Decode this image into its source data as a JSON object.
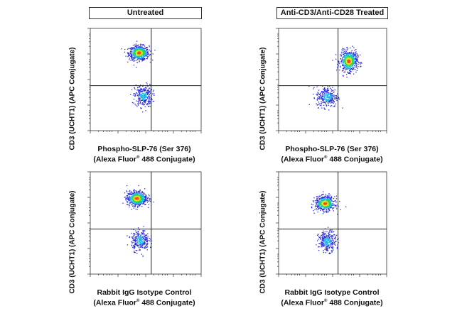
{
  "columns": [
    {
      "title": "Untreated"
    },
    {
      "title": "Anti-CD3/Anti-CD28 Treated"
    }
  ],
  "chart_data": [
    {
      "type": "scatter",
      "subtype": "flow-cytometry-density-dot-plot",
      "column": "Untreated",
      "xlabel_line1": "Phospho-SLP-76 (Ser 376)",
      "xlabel_line2_pre": "(Alexa Fluor",
      "xlabel_sup": "®",
      "xlabel_line2_post": " 488 Conjugate)",
      "ylabel": "CD3 (UCHT1) (APC Conjugate)",
      "xlim": [
        0,
        1
      ],
      "ylim": [
        0,
        1
      ],
      "gate": {
        "x": 0.55,
        "y": 0.44
      },
      "populations": [
        {
          "name": "CD3 high",
          "cx": 0.44,
          "cy": 0.76,
          "sx": 0.045,
          "sy": 0.035,
          "count": 650,
          "hot": true
        },
        {
          "name": "CD3 low",
          "cx": 0.48,
          "cy": 0.34,
          "sx": 0.04,
          "sy": 0.055,
          "count": 300,
          "hot": false
        }
      ]
    },
    {
      "type": "scatter",
      "subtype": "flow-cytometry-density-dot-plot",
      "column": "Anti-CD3/Anti-CD28 Treated",
      "xlabel_line1": "Phospho-SLP-76 (Ser 376)",
      "xlabel_line2_pre": "(Alexa Fluor",
      "xlabel_sup": "®",
      "xlabel_line2_post": " 488 Conjugate)",
      "ylabel": "CD3 (UCHT1) (APC Conjugate)",
      "xlim": [
        0,
        1
      ],
      "ylim": [
        0,
        1
      ],
      "gate": {
        "x": 0.55,
        "y": 0.44
      },
      "populations": [
        {
          "name": "CD3 high",
          "cx": 0.65,
          "cy": 0.68,
          "sx": 0.04,
          "sy": 0.05,
          "count": 600,
          "hot": true
        },
        {
          "name": "CD3 low",
          "cx": 0.45,
          "cy": 0.33,
          "sx": 0.05,
          "sy": 0.05,
          "count": 300,
          "hot": false
        }
      ]
    },
    {
      "type": "scatter",
      "subtype": "flow-cytometry-density-dot-plot",
      "column": "Untreated",
      "xlabel_line1": "Rabbit IgG Isotype Control",
      "xlabel_line2_pre": "(Alexa Fluor",
      "xlabel_sup": "®",
      "xlabel_line2_post": " 488 Conjugate)",
      "ylabel": "CD3 (UCHT1) (APC Conjugate)",
      "xlim": [
        0,
        1
      ],
      "ylim": [
        0,
        1
      ],
      "gate": {
        "x": 0.55,
        "y": 0.44
      },
      "populations": [
        {
          "name": "CD3 high",
          "cx": 0.42,
          "cy": 0.74,
          "sx": 0.045,
          "sy": 0.035,
          "count": 650,
          "hot": true
        },
        {
          "name": "CD3 low",
          "cx": 0.45,
          "cy": 0.33,
          "sx": 0.04,
          "sy": 0.05,
          "count": 300,
          "hot": false
        }
      ]
    },
    {
      "type": "scatter",
      "subtype": "flow-cytometry-density-dot-plot",
      "column": "Anti-CD3/Anti-CD28 Treated",
      "xlabel_line1": "Rabbit IgG Isotype Control",
      "xlabel_line2_pre": "(Alexa Fluor",
      "xlabel_sup": "®",
      "xlabel_line2_post": " 488 Conjugate)",
      "ylabel": "CD3 (UCHT1) (APC Conjugate)",
      "xlim": [
        0,
        1
      ],
      "ylim": [
        0,
        1
      ],
      "gate": {
        "x": 0.55,
        "y": 0.44
      },
      "populations": [
        {
          "name": "CD3 high",
          "cx": 0.43,
          "cy": 0.69,
          "sx": 0.045,
          "sy": 0.035,
          "count": 600,
          "hot": true
        },
        {
          "name": "CD3 low",
          "cx": 0.45,
          "cy": 0.32,
          "sx": 0.04,
          "sy": 0.05,
          "count": 300,
          "hot": false
        }
      ]
    }
  ],
  "colors": {
    "dot_low": "#2a2ad8",
    "dot_mid": "#19b8e8",
    "dot_high_1": "#2ad84a",
    "dot_high_2": "#e8e020",
    "dot_high_3": "#f05010",
    "gate_line": "#222222",
    "axis": "#333333"
  }
}
